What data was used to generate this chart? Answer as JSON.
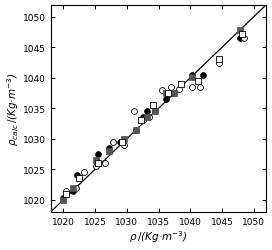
{
  "title": "",
  "xlabel": "ρ / (Kg·m⁻³)",
  "ylabel": "ρ_calc / (Kg·m⁻³)",
  "xlim": [
    1018,
    1052
  ],
  "ylim": [
    1018,
    1052
  ],
  "xticks": [
    1020,
    1025,
    1030,
    1035,
    1040,
    1045,
    1050
  ],
  "yticks": [
    1020,
    1025,
    1030,
    1035,
    1040,
    1045,
    1050
  ],
  "diag_line": [
    1018,
    1052
  ],
  "ann_filled_circles": [
    [
      1020.0,
      1020.3
    ],
    [
      1021.5,
      1021.5
    ],
    [
      1022.2,
      1024.0
    ],
    [
      1025.5,
      1027.5
    ],
    [
      1027.2,
      1028.5
    ],
    [
      1029.0,
      1029.5
    ],
    [
      1031.5,
      1031.5
    ],
    [
      1032.5,
      1033.5
    ],
    [
      1033.2,
      1034.5
    ],
    [
      1034.5,
      1034.5
    ],
    [
      1036.2,
      1036.5
    ],
    [
      1037.5,
      1037.5
    ],
    [
      1040.2,
      1040.5
    ],
    [
      1042.0,
      1040.5
    ],
    [
      1047.8,
      1046.5
    ]
  ],
  "ann_open_circles": [
    [
      1020.5,
      1021.5
    ],
    [
      1022.0,
      1022.0
    ],
    [
      1023.2,
      1024.5
    ],
    [
      1025.2,
      1025.5
    ],
    [
      1026.5,
      1026.0
    ],
    [
      1027.8,
      1029.5
    ],
    [
      1029.5,
      1029.0
    ],
    [
      1031.2,
      1034.5
    ],
    [
      1032.5,
      1033.0
    ],
    [
      1033.5,
      1033.5
    ],
    [
      1035.5,
      1038.0
    ],
    [
      1037.0,
      1038.5
    ],
    [
      1038.2,
      1038.2
    ],
    [
      1040.2,
      1038.5
    ],
    [
      1041.5,
      1038.5
    ],
    [
      1044.5,
      1042.5
    ],
    [
      1048.5,
      1046.5
    ]
  ],
  "poly_filled_squares": [
    [
      1020.0,
      1020.0
    ],
    [
      1021.5,
      1022.0
    ],
    [
      1025.2,
      1026.5
    ],
    [
      1027.2,
      1028.0
    ],
    [
      1029.5,
      1030.0
    ],
    [
      1031.5,
      1031.5
    ],
    [
      1033.2,
      1033.5
    ],
    [
      1034.5,
      1034.5
    ],
    [
      1036.2,
      1037.5
    ],
    [
      1037.5,
      1037.5
    ],
    [
      1040.2,
      1040.2
    ],
    [
      1047.8,
      1047.8
    ]
  ],
  "poly_open_squares": [
    [
      1020.5,
      1021.0
    ],
    [
      1022.5,
      1023.5
    ],
    [
      1025.5,
      1026.0
    ],
    [
      1029.2,
      1029.5
    ],
    [
      1032.2,
      1033.0
    ],
    [
      1034.2,
      1035.5
    ],
    [
      1036.5,
      1037.5
    ],
    [
      1038.5,
      1039.0
    ],
    [
      1041.2,
      1039.5
    ],
    [
      1044.5,
      1043.0
    ],
    [
      1048.2,
      1047.2
    ]
  ],
  "line_color": "#000000",
  "fc_color": "#000000",
  "oc_color": "#ffffff",
  "oc_edge_color": "#000000",
  "fs_color": "#555555",
  "os_color": "#ffffff",
  "os_edge_color": "#000000",
  "marker_size_circle": 18,
  "marker_size_square": 16,
  "xlabel_text": "ρ /(Kg·m⁻³)",
  "ylabel_text": "ρ_calc/(Kg·m⁻³)",
  "tick_labelsize": 6.5,
  "label_fontsize": 7.5
}
